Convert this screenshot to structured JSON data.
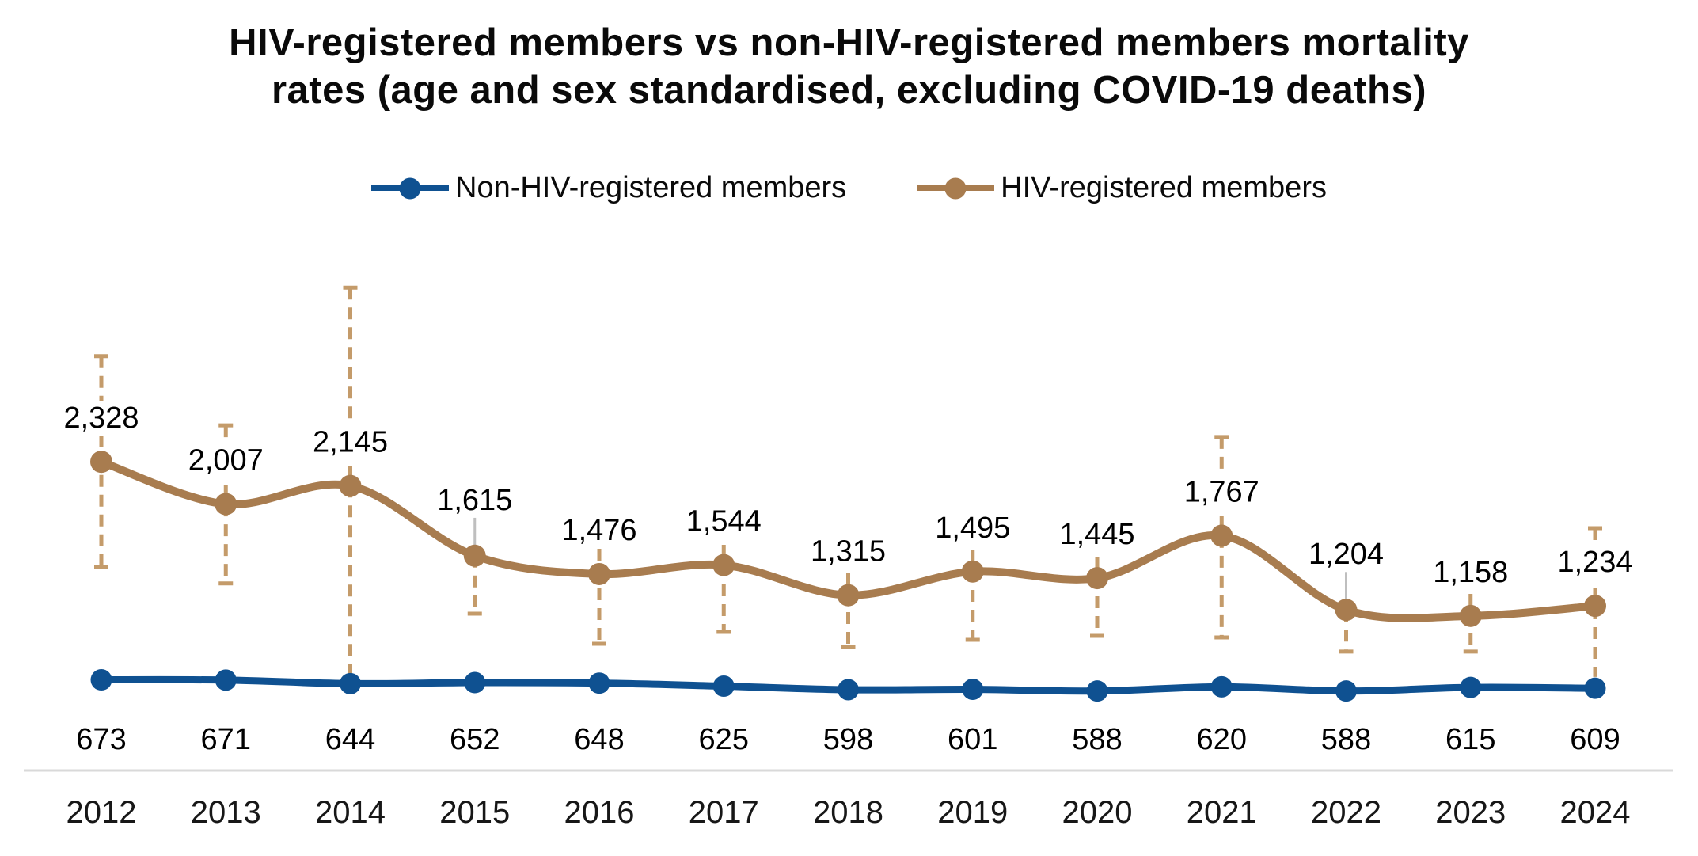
{
  "title": {
    "line1": "HIV-registered members vs non-HIV-registered members mortality",
    "line2": "rates (age and sex standardised, excluding COVID-19 deaths)"
  },
  "legend": {
    "position": "top",
    "items": [
      {
        "label": "Non-HIV-registered members",
        "color": "#0F5191"
      },
      {
        "label": "HIV-registered members",
        "color": "#A87C4F"
      }
    ]
  },
  "colors": {
    "background": "#FFFFFF",
    "axis_line": "#D9D9D9",
    "error_bar": "#C49B6A",
    "leader_line": "#BFBFBF",
    "label_text": "#000000",
    "tick_text": "#171717"
  },
  "chart_data": {
    "type": "line",
    "x": [
      2012,
      2013,
      2014,
      2015,
      2016,
      2017,
      2018,
      2019,
      2020,
      2021,
      2022,
      2023,
      2024
    ],
    "series": [
      {
        "name": "Non-HIV-registered members",
        "color": "#0F5191",
        "marker": "circle",
        "smoothed": true,
        "label_position": "below",
        "values": [
          673,
          671,
          644,
          652,
          648,
          625,
          598,
          601,
          588,
          620,
          588,
          615,
          609
        ]
      },
      {
        "name": "HIV-registered members",
        "color": "#A87C4F",
        "marker": "circle",
        "smoothed": true,
        "label_position": "above",
        "values": [
          2328,
          2007,
          2145,
          1615,
          1476,
          1544,
          1315,
          1495,
          1445,
          1767,
          1204,
          1158,
          1234
        ],
        "error_bars": [
          {
            "hi": 3130,
            "lo": 1530,
            "hi_cap": true,
            "lo_cap": true,
            "leader": false
          },
          {
            "hi": 2605,
            "lo": 1405,
            "hi_cap": true,
            "lo_cap": true,
            "leader": false
          },
          {
            "hi": 3650,
            "lo": 695,
            "hi_cap": true,
            "lo_cap": false,
            "leader": false
          },
          {
            "hi": null,
            "lo": 1175,
            "hi_cap": false,
            "lo_cap": true,
            "leader": true
          },
          {
            "hi": 1668,
            "lo": 947,
            "hi_cap": false,
            "lo_cap": true,
            "leader": false
          },
          {
            "hi": 1698,
            "lo": 1037,
            "hi_cap": false,
            "lo_cap": true,
            "leader": false
          },
          {
            "hi": 1488,
            "lo": 923,
            "hi_cap": false,
            "lo_cap": true,
            "leader": false
          },
          {
            "hi": 1656,
            "lo": 977,
            "hi_cap": false,
            "lo_cap": true,
            "leader": false
          },
          {
            "hi": 1608,
            "lo": 1007,
            "hi_cap": false,
            "lo_cap": true,
            "leader": false
          },
          {
            "hi": 2516,
            "lo": 995,
            "hi_cap": true,
            "lo_cap": true,
            "leader": false
          },
          {
            "hi": null,
            "lo": 887,
            "hi_cap": false,
            "lo_cap": true,
            "leader": true
          },
          {
            "hi": 1325,
            "lo": 887,
            "hi_cap": false,
            "lo_cap": true,
            "leader": false
          },
          {
            "hi": 1824,
            "lo": 695,
            "hi_cap": true,
            "lo_cap": false,
            "leader": false
          }
        ]
      }
    ],
    "grid": false,
    "y_axis_visible": false,
    "baseline_value": 0,
    "number_format": "#,##0",
    "legend_position": "top"
  }
}
